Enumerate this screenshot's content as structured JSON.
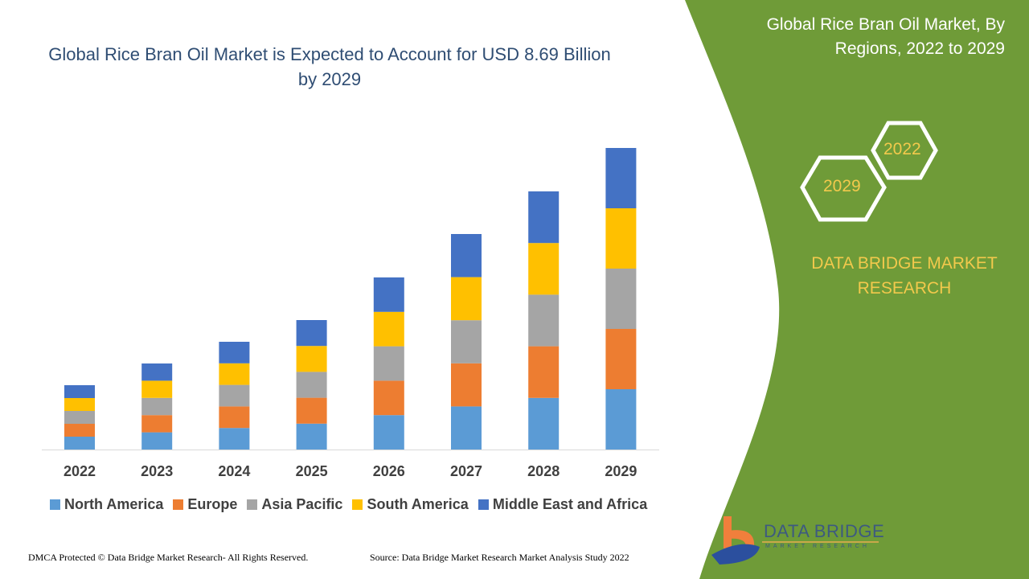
{
  "title": "Global Rice Bran Oil Market is Expected to Account for USD 8.69 Billion by 2029",
  "side_panel": {
    "title": "Global Rice Bran Oil Market, By Regions, 2022 to 2029",
    "hex_years": [
      "2022",
      "2029"
    ],
    "brand": "DATA BRIDGE MARKET RESEARCH",
    "logo_text": "DATA BRIDGE",
    "logo_subtext": "MARKET RESEARCH",
    "color": "#6f9b38"
  },
  "footer": {
    "left": "DMCA Protected © Data Bridge Market Research- All Rights Reserved.",
    "right": "Source: Data Bridge Market Research Market Analysis Study 2022"
  },
  "chart_data": {
    "type": "bar",
    "stacked": true,
    "categories": [
      "2022",
      "2023",
      "2024",
      "2025",
      "2026",
      "2027",
      "2028",
      "2029"
    ],
    "series": [
      {
        "name": "North America",
        "color": "#5b9bd5",
        "values": [
          16,
          21.4,
          26.8,
          32.2,
          42.8,
          53.6,
          64.2,
          75
        ]
      },
      {
        "name": "Europe",
        "color": "#ed7d31",
        "values": [
          16,
          21.4,
          26.8,
          32.2,
          42.8,
          53.6,
          64.2,
          75
        ]
      },
      {
        "name": "Asia Pacific",
        "color": "#a5a5a5",
        "values": [
          16,
          21.4,
          26.8,
          32.2,
          42.8,
          53.6,
          64.2,
          75
        ]
      },
      {
        "name": "South America",
        "color": "#ffc000",
        "values": [
          16,
          21.4,
          26.8,
          32.2,
          42.8,
          53.6,
          64.2,
          75
        ]
      },
      {
        "name": "Middle East and Africa",
        "color": "#4472c4",
        "values": [
          16,
          21.4,
          26.8,
          32.2,
          42.8,
          53.6,
          64.2,
          75
        ]
      }
    ],
    "y_axis_shown": false,
    "grid": false,
    "legend_position": "bottom"
  }
}
